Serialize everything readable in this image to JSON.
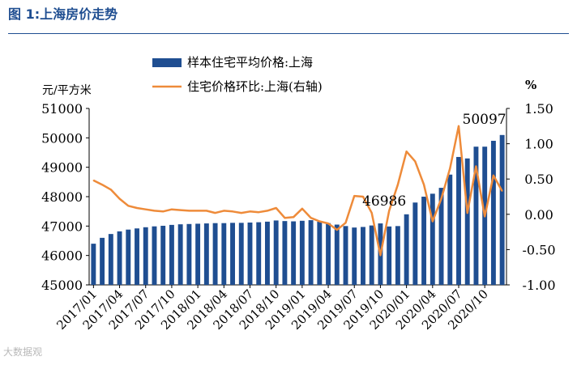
{
  "figure_title": "图 1:上海房价走势",
  "watermark": "大数据观",
  "chart_data": {
    "type": "bar",
    "y_left_label": "元/平方米",
    "y_right_label": "%",
    "y_left_lim": [
      45000,
      51000
    ],
    "y_left_ticks": [
      45000,
      46000,
      47000,
      48000,
      49000,
      50000,
      51000
    ],
    "y_right_lim": [
      -1.0,
      1.5
    ],
    "y_right_ticks": [
      "1.50",
      "1.00",
      "0.50",
      "0.00",
      "-0.50",
      "-1.00"
    ],
    "x_tick_labels": [
      "2017/01",
      "2017/04",
      "2017/07",
      "2017/10",
      "2018/01",
      "2018/04",
      "2018/07",
      "2018/10",
      "2019/01",
      "2019/04",
      "2019/07",
      "2019/10",
      "2020/01",
      "2020/04",
      "2020/07",
      "2020/10"
    ],
    "categories": [
      "2017/01",
      "2017/02",
      "2017/03",
      "2017/04",
      "2017/05",
      "2017/06",
      "2017/07",
      "2017/08",
      "2017/09",
      "2017/10",
      "2017/11",
      "2017/12",
      "2018/01",
      "2018/02",
      "2018/03",
      "2018/04",
      "2018/05",
      "2018/06",
      "2018/07",
      "2018/08",
      "2018/09",
      "2018/10",
      "2018/11",
      "2018/12",
      "2019/01",
      "2019/02",
      "2019/03",
      "2019/04",
      "2019/05",
      "2019/06",
      "2019/07",
      "2019/08",
      "2019/09",
      "2019/10",
      "2019/11",
      "2019/12",
      "2020/01",
      "2020/02",
      "2020/03",
      "2020/04",
      "2020/05",
      "2020/06",
      "2020/07",
      "2020/08",
      "2020/09",
      "2020/10",
      "2020/11",
      "2020/12"
    ],
    "series": [
      {
        "name": "样本住宅平均价格:上海",
        "type": "bar",
        "axis": "left",
        "color": "#1f4e91",
        "values": [
          46400,
          46600,
          46730,
          46820,
          46880,
          46920,
          46960,
          46990,
          47010,
          47040,
          47060,
          47070,
          47080,
          47090,
          47100,
          47100,
          47110,
          47110,
          47120,
          47130,
          47150,
          47190,
          47170,
          47160,
          47180,
          47200,
          47150,
          47100,
          47050,
          47000,
          46950,
          46970,
          47020,
          47090,
          46986,
          47000,
          47400,
          47800,
          48000,
          48100,
          48300,
          48750,
          49350,
          49300,
          49700,
          49700,
          49900,
          50097
        ]
      },
      {
        "name": "住宅价格环比:上海(右轴)",
        "type": "line",
        "axis": "right",
        "color": "#ee8b3a",
        "values": [
          0.48,
          0.42,
          0.35,
          0.22,
          0.12,
          0.09,
          0.07,
          0.05,
          0.04,
          0.07,
          0.06,
          0.05,
          0.05,
          0.05,
          0.02,
          0.05,
          0.04,
          0.02,
          0.04,
          0.03,
          0.05,
          0.09,
          -0.05,
          -0.04,
          0.08,
          -0.05,
          -0.1,
          -0.13,
          -0.22,
          -0.12,
          0.26,
          0.25,
          0.02,
          -0.58,
          0.05,
          0.42,
          0.89,
          0.75,
          0.42,
          -0.1,
          0.22,
          0.65,
          1.25,
          0.02,
          0.68,
          -0.03,
          0.55,
          0.33
        ]
      }
    ],
    "annotations": [
      {
        "text": "46986",
        "category": "2019/11"
      },
      {
        "text": "50097",
        "category": "2020/12"
      }
    ],
    "legend_position": "top-center",
    "grid": false
  }
}
